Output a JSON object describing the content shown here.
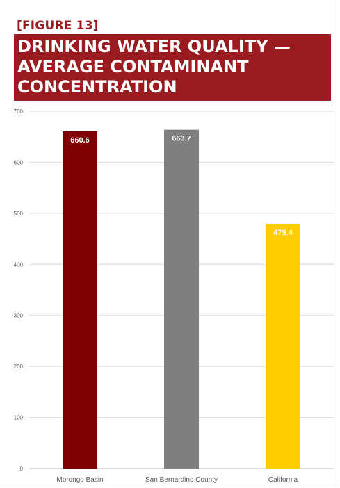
{
  "figure_label": "[FIGURE 13]",
  "title": "DRINKING WATER QUALITY — AVERAGE CONTAMINANT CONCENTRATION",
  "colors": {
    "brand": "#9b1c20",
    "morongo_basin": "#7f0000",
    "san_bernardino_county": "#7f7f7f",
    "california": "#ffcc00",
    "gridline": "#d9d9d9",
    "tick_text": "#595959"
  },
  "chart_data": {
    "type": "bar",
    "categories": [
      "Morongo Basin",
      "San Bernardino County",
      "California"
    ],
    "values": [
      660.6,
      663.7,
      479.4
    ],
    "data_labels": [
      "660.6",
      "663.7",
      "479.4"
    ],
    "bar_colors": [
      "#7f0000",
      "#7f7f7f",
      "#ffcc00"
    ],
    "ylim": [
      0,
      700
    ],
    "yticks": [
      0,
      100,
      200,
      300,
      400,
      500,
      600,
      700
    ],
    "grid": true,
    "legend": "none"
  }
}
